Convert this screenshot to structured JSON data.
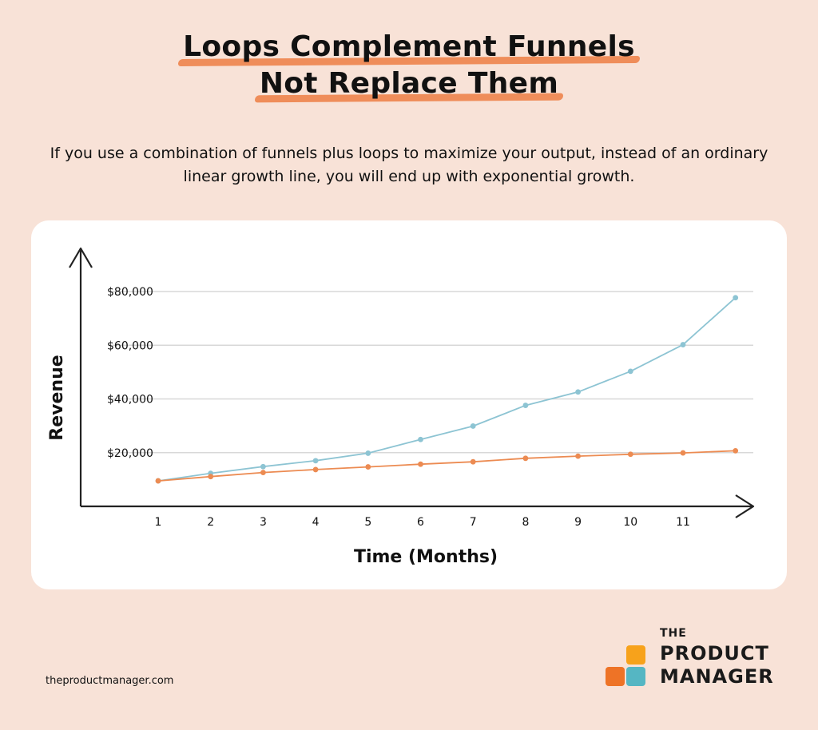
{
  "title": {
    "line1": "Loops Complement Funnels",
    "line2": "Not Replace Them"
  },
  "subtitle": "If you use a combination of funnels plus loops to maximize your output, instead of an ordinary linear growth line, you will end up with exponential growth.",
  "chart_data": {
    "type": "line",
    "xlabel": "Time (Months)",
    "ylabel": "Revenue",
    "x": [
      1,
      2,
      3,
      4,
      5,
      6,
      7,
      8,
      9,
      10,
      11,
      12
    ],
    "x_tick_labels": [
      "1",
      "2",
      "3",
      "4",
      "5",
      "6",
      "7",
      "8",
      "9",
      "10",
      "11"
    ],
    "y_ticks": [
      20000,
      40000,
      60000,
      80000
    ],
    "y_tick_labels": [
      "$20,000",
      "$40,000",
      "$60,000",
      "$80,000"
    ],
    "ylim": [
      0,
      80000
    ],
    "grid": true,
    "series": [
      {
        "color": "#8dc4d3",
        "values": [
          9500,
          12300,
          14800,
          17000,
          19800,
          24900,
          29900,
          37600,
          42600,
          50300,
          60200,
          77700
        ]
      },
      {
        "color": "#ec8b52",
        "values": [
          9500,
          11100,
          12600,
          13700,
          14700,
          15700,
          16600,
          17900,
          18700,
          19400,
          19900,
          20700
        ]
      }
    ]
  },
  "footer": {
    "url": "theproductmanager.com",
    "brand_the": "THE",
    "brand_line1": "PRODUCT",
    "brand_line2": "MANAGER",
    "colors": {
      "orange_top": "#f7a21b",
      "orange_bottom": "#ee7326",
      "teal": "#55b6c3"
    }
  }
}
